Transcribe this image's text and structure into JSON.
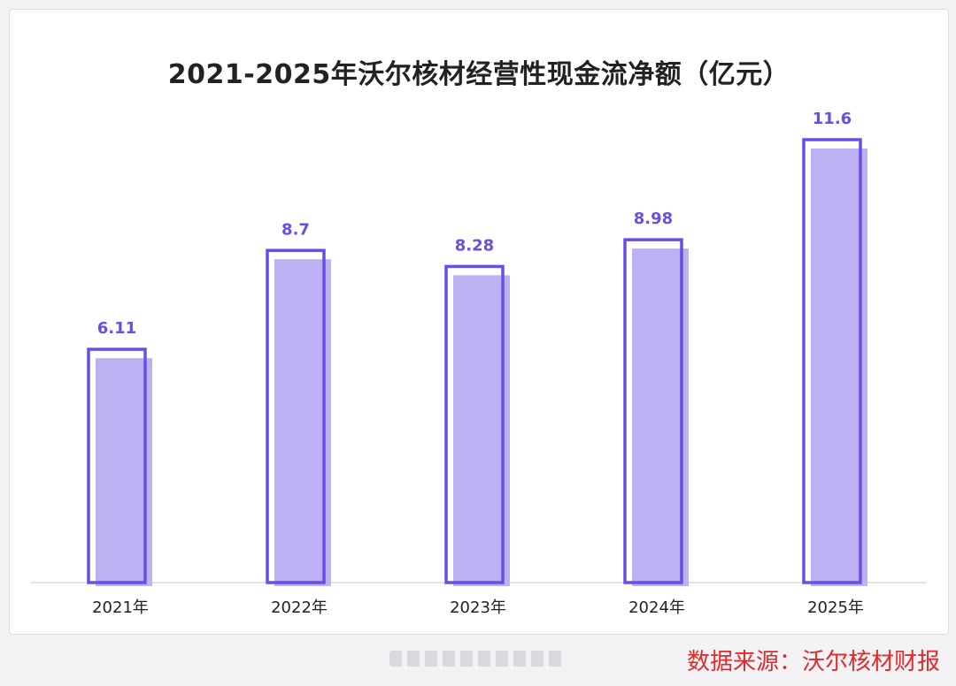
{
  "chart_data": {
    "type": "bar",
    "title": "2021-2025年沃尔核材经营性现金流净额（亿元）",
    "categories": [
      "2021年",
      "2022年",
      "2023年",
      "2024年",
      "2025年"
    ],
    "values": [
      6.11,
      8.7,
      8.28,
      8.98,
      11.6
    ],
    "value_labels": [
      "6.11",
      "8.7",
      "8.28",
      "8.98",
      "11.6"
    ],
    "ylim": [
      0,
      11.6
    ],
    "grid": false,
    "legend": "none",
    "colors": {
      "bar_fill": "#bdb1f3",
      "bar_outline": "#6a4de6",
      "value_label": "#6a4de6",
      "baseline": "#d9d9d9",
      "category_label": "#222222"
    }
  },
  "footer": {
    "source": "数据来源：沃尔核材财报"
  }
}
